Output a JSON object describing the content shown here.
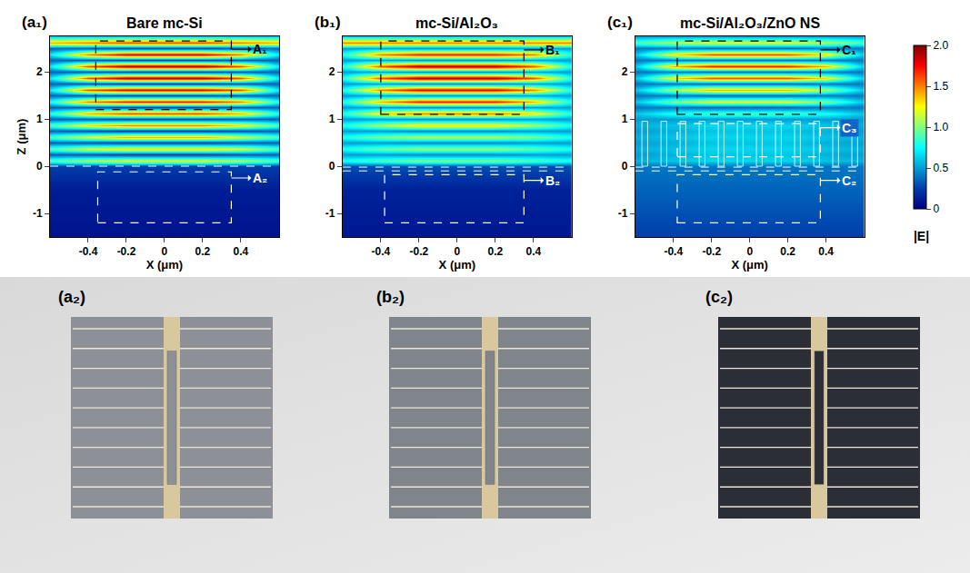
{
  "chart_data": [
    {
      "type": "heatmap",
      "panel": "(a₁)",
      "title": "Bare mc-Si",
      "xlabel": "X (μm)",
      "ylabel": "Z (μm)",
      "xlim": [
        -0.6,
        0.6
      ],
      "xticks": [
        -0.4,
        -0.2,
        0,
        0.2,
        0.4
      ],
      "ylim": [
        -1.5,
        2.75
      ],
      "yticks": [
        -1,
        0,
        1,
        2
      ],
      "x": [
        -0.6,
        -0.4,
        -0.2,
        0,
        0.2,
        0.4,
        0.6
      ],
      "y": [
        -1.5,
        -1,
        -0.5,
        0,
        0.125,
        0.25,
        0.375,
        0.5,
        0.625,
        0.75,
        0.875,
        1,
        1.125,
        1.25,
        1.375,
        1.5,
        1.625,
        1.75,
        1.875,
        2,
        2.125,
        2.25,
        2.375,
        2.5,
        2.625,
        2.75
      ],
      "z": [
        [
          0.08,
          0.08,
          0.08,
          0.08,
          0.08,
          0.08,
          0.08
        ],
        [
          0.1,
          0.1,
          0.1,
          0.1,
          0.1,
          0.1,
          0.1
        ],
        [
          0.12,
          0.12,
          0.12,
          0.12,
          0.12,
          0.12,
          0.12
        ],
        [
          0.25,
          0.25,
          0.25,
          0.25,
          0.25,
          0.25,
          0.25
        ],
        [
          0.9,
          1.1,
          1.2,
          1.2,
          1.2,
          1.1,
          0.9
        ],
        [
          0.35,
          0.3,
          0.25,
          0.25,
          0.25,
          0.3,
          0.35
        ],
        [
          0.9,
          1.2,
          1.3,
          1.3,
          1.3,
          1.2,
          0.9
        ],
        [
          0.35,
          0.3,
          0.25,
          0.25,
          0.25,
          0.3,
          0.35
        ],
        [
          0.9,
          1.2,
          1.4,
          1.4,
          1.4,
          1.2,
          0.9
        ],
        [
          0.35,
          0.3,
          0.25,
          0.25,
          0.25,
          0.3,
          0.35
        ],
        [
          0.9,
          1.3,
          1.5,
          1.5,
          1.5,
          1.3,
          0.9
        ],
        [
          0.35,
          0.3,
          0.25,
          0.25,
          0.25,
          0.3,
          0.35
        ],
        [
          0.8,
          1.4,
          1.6,
          1.6,
          1.6,
          1.4,
          0.8
        ],
        [
          0.35,
          0.3,
          0.25,
          0.25,
          0.25,
          0.3,
          0.35
        ],
        [
          0.8,
          1.5,
          1.7,
          1.7,
          1.7,
          1.5,
          0.8
        ],
        [
          0.35,
          0.3,
          0.25,
          0.25,
          0.25,
          0.3,
          0.35
        ],
        [
          0.7,
          1.6,
          1.8,
          1.8,
          1.8,
          1.6,
          0.7
        ],
        [
          0.35,
          0.3,
          0.25,
          0.25,
          0.25,
          0.3,
          0.35
        ],
        [
          0.7,
          1.6,
          1.9,
          1.9,
          1.9,
          1.6,
          0.7
        ],
        [
          0.35,
          0.3,
          0.25,
          0.25,
          0.25,
          0.3,
          0.35
        ],
        [
          0.7,
          1.6,
          1.9,
          1.9,
          1.9,
          1.6,
          0.7
        ],
        [
          0.35,
          0.3,
          0.25,
          0.25,
          0.25,
          0.3,
          0.35
        ],
        [
          0.7,
          1.5,
          1.8,
          1.8,
          1.8,
          1.5,
          0.7
        ],
        [
          0.35,
          0.3,
          0.25,
          0.25,
          0.25,
          0.3,
          0.35
        ],
        [
          1.4,
          1.5,
          1.6,
          1.6,
          1.6,
          1.5,
          1.4
        ],
        [
          0.6,
          0.6,
          0.6,
          0.6,
          0.6,
          0.6,
          0.6
        ]
      ],
      "interfaces": [
        0
      ],
      "regions": [
        {
          "label": "A₁",
          "x": [
            -0.36,
            0.35
          ],
          "y": [
            1.2,
            2.65
          ],
          "color": "#000000"
        },
        {
          "label": "A₂",
          "x": [
            -0.35,
            0.35
          ],
          "y": [
            -1.2,
            -0.12
          ],
          "color": "#ffffff"
        }
      ]
    },
    {
      "type": "heatmap",
      "panel": "(b₁)",
      "title": "mc-Si/Al₂O₃",
      "xlabel": "X (μm)",
      "xlim": [
        -0.6,
        0.6
      ],
      "xticks": [
        -0.4,
        -0.2,
        0,
        0.2,
        0.4
      ],
      "ylim": [
        -1.5,
        2.75
      ],
      "yticks": [
        -1,
        0,
        1,
        2
      ],
      "x": [
        -0.6,
        -0.4,
        -0.2,
        0,
        0.2,
        0.4,
        0.6
      ],
      "y": [
        -1.5,
        -1,
        -0.5,
        0,
        0.125,
        0.25,
        0.375,
        0.5,
        0.625,
        0.75,
        0.875,
        1,
        1.125,
        1.25,
        1.375,
        1.5,
        1.625,
        1.75,
        1.875,
        2,
        2.125,
        2.25,
        2.375,
        2.5,
        2.625,
        2.75
      ],
      "z": [
        [
          0.1,
          0.1,
          0.1,
          0.1,
          0.1,
          0.1,
          0.1
        ],
        [
          0.12,
          0.12,
          0.12,
          0.12,
          0.12,
          0.12,
          0.12
        ],
        [
          0.14,
          0.14,
          0.14,
          0.14,
          0.14,
          0.14,
          0.14
        ],
        [
          0.3,
          0.3,
          0.3,
          0.3,
          0.3,
          0.3,
          0.3
        ],
        [
          0.8,
          0.9,
          1.0,
          1.0,
          1.0,
          0.9,
          0.8
        ],
        [
          0.5,
          0.5,
          0.45,
          0.45,
          0.45,
          0.5,
          0.5
        ],
        [
          0.8,
          0.95,
          1.05,
          1.05,
          1.05,
          0.95,
          0.8
        ],
        [
          0.5,
          0.5,
          0.45,
          0.45,
          0.45,
          0.5,
          0.5
        ],
        [
          0.8,
          1.0,
          1.1,
          1.1,
          1.1,
          1.0,
          0.8
        ],
        [
          0.5,
          0.5,
          0.45,
          0.45,
          0.45,
          0.5,
          0.5
        ],
        [
          0.8,
          1.1,
          1.3,
          1.3,
          1.3,
          1.1,
          0.8
        ],
        [
          0.5,
          0.5,
          0.45,
          0.45,
          0.45,
          0.5,
          0.5
        ],
        [
          0.8,
          1.3,
          1.5,
          1.5,
          1.5,
          1.3,
          0.8
        ],
        [
          0.5,
          0.5,
          0.45,
          0.45,
          0.45,
          0.5,
          0.5
        ],
        [
          0.8,
          1.4,
          1.7,
          1.7,
          1.7,
          1.4,
          0.8
        ],
        [
          0.5,
          0.5,
          0.45,
          0.45,
          0.45,
          0.5,
          0.5
        ],
        [
          0.8,
          1.5,
          1.8,
          1.8,
          1.8,
          1.5,
          0.8
        ],
        [
          0.5,
          0.5,
          0.45,
          0.45,
          0.45,
          0.5,
          0.5
        ],
        [
          0.8,
          1.6,
          1.9,
          1.9,
          1.9,
          1.6,
          0.8
        ],
        [
          0.5,
          0.5,
          0.45,
          0.45,
          0.45,
          0.5,
          0.5
        ],
        [
          0.8,
          1.6,
          1.9,
          1.9,
          1.9,
          1.6,
          0.8
        ],
        [
          0.5,
          0.5,
          0.45,
          0.45,
          0.45,
          0.5,
          0.5
        ],
        [
          0.8,
          1.5,
          1.7,
          1.7,
          1.7,
          1.5,
          0.8
        ],
        [
          0.5,
          0.5,
          0.45,
          0.45,
          0.45,
          0.5,
          0.5
        ],
        [
          1.5,
          1.5,
          1.5,
          1.5,
          1.5,
          1.5,
          1.5
        ],
        [
          0.6,
          0.6,
          0.6,
          0.6,
          0.6,
          0.6,
          0.6
        ]
      ],
      "interfaces": [
        -0.02,
        -0.1
      ],
      "regions": [
        {
          "label": "B₁",
          "x": [
            -0.4,
            0.35
          ],
          "y": [
            1.1,
            2.65
          ],
          "color": "#000000"
        },
        {
          "label": "B₂",
          "x": [
            -0.38,
            0.35
          ],
          "y": [
            -1.2,
            -0.18
          ],
          "color": "#ffffff"
        }
      ]
    },
    {
      "type": "heatmap",
      "panel": "(c₁)",
      "title": "mc-Si/Al₂O₃/ZnO NS",
      "xlabel": "X (μm)",
      "xlim": [
        -0.6,
        0.6
      ],
      "xticks": [
        -0.4,
        -0.2,
        0,
        0.2,
        0.4
      ],
      "ylim": [
        -1.5,
        2.75
      ],
      "yticks": [
        -1,
        0,
        1,
        2
      ],
      "x": [
        -0.6,
        -0.4,
        -0.2,
        0,
        0.2,
        0.4,
        0.6
      ],
      "y": [
        -1.5,
        -1,
        -0.5,
        0,
        0.125,
        0.25,
        0.375,
        0.5,
        0.625,
        0.75,
        0.875,
        1,
        1.125,
        1.25,
        1.375,
        1.5,
        1.625,
        1.75,
        1.875,
        2,
        2.125,
        2.25,
        2.375,
        2.5,
        2.625,
        2.75
      ],
      "z": [
        [
          0.25,
          0.25,
          0.25,
          0.25,
          0.25,
          0.25,
          0.25
        ],
        [
          0.3,
          0.3,
          0.3,
          0.3,
          0.3,
          0.3,
          0.3
        ],
        [
          0.35,
          0.35,
          0.35,
          0.35,
          0.35,
          0.35,
          0.35
        ],
        [
          0.4,
          0.4,
          0.4,
          0.4,
          0.4,
          0.4,
          0.4
        ],
        [
          0.55,
          0.6,
          0.65,
          0.65,
          0.65,
          0.6,
          0.55
        ],
        [
          0.5,
          0.55,
          0.6,
          0.6,
          0.6,
          0.55,
          0.5
        ],
        [
          0.55,
          0.6,
          0.65,
          0.65,
          0.65,
          0.6,
          0.55
        ],
        [
          0.5,
          0.55,
          0.6,
          0.6,
          0.6,
          0.55,
          0.5
        ],
        [
          0.55,
          0.6,
          0.65,
          0.65,
          0.65,
          0.6,
          0.55
        ],
        [
          0.5,
          0.55,
          0.6,
          0.6,
          0.6,
          0.55,
          0.5
        ],
        [
          0.55,
          0.6,
          0.65,
          0.65,
          0.65,
          0.6,
          0.55
        ],
        [
          0.5,
          0.5,
          0.5,
          0.5,
          0.5,
          0.5,
          0.5
        ],
        [
          0.6,
          0.8,
          0.9,
          0.9,
          0.9,
          0.8,
          0.6
        ],
        [
          0.4,
          0.4,
          0.35,
          0.35,
          0.35,
          0.4,
          0.4
        ],
        [
          0.6,
          1.0,
          1.2,
          1.2,
          1.2,
          1.0,
          0.6
        ],
        [
          0.4,
          0.4,
          0.35,
          0.35,
          0.35,
          0.4,
          0.4
        ],
        [
          0.6,
          1.1,
          1.4,
          1.4,
          1.4,
          1.1,
          0.6
        ],
        [
          0.4,
          0.4,
          0.35,
          0.35,
          0.35,
          0.4,
          0.4
        ],
        [
          0.6,
          1.3,
          1.6,
          1.6,
          1.6,
          1.3,
          0.6
        ],
        [
          0.4,
          0.4,
          0.35,
          0.35,
          0.35,
          0.4,
          0.4
        ],
        [
          0.6,
          1.4,
          1.7,
          1.7,
          1.7,
          1.4,
          0.6
        ],
        [
          0.4,
          0.4,
          0.35,
          0.35,
          0.35,
          0.4,
          0.4
        ],
        [
          0.6,
          1.3,
          1.6,
          1.6,
          1.6,
          1.3,
          0.6
        ],
        [
          0.4,
          0.4,
          0.35,
          0.35,
          0.35,
          0.4,
          0.4
        ],
        [
          0.9,
          1.1,
          1.2,
          1.2,
          1.2,
          1.1,
          0.9
        ],
        [
          0.5,
          0.5,
          0.5,
          0.5,
          0.5,
          0.5,
          0.5
        ]
      ],
      "interfaces": [
        -0.02,
        -0.1
      ],
      "nanorods": {
        "x": [
          -0.55,
          -0.45,
          -0.35,
          -0.25,
          -0.15,
          -0.05,
          0.05,
          0.15,
          0.25,
          0.35,
          0.45,
          0.55
        ],
        "y": [
          0,
          0.95
        ]
      },
      "regions": [
        {
          "label": "C₁",
          "x": [
            -0.38,
            0.37
          ],
          "y": [
            1.1,
            2.65
          ],
          "color": "#000000"
        },
        {
          "label": "C₃",
          "x": [
            -0.38,
            0.37
          ],
          "y": [
            0.2,
            0.9
          ],
          "color": "#ffffff"
        },
        {
          "label": "C₂",
          "x": [
            -0.38,
            0.37
          ],
          "y": [
            -1.2,
            -0.18
          ],
          "color": "#ffffff"
        }
      ]
    }
  ],
  "colorbar": {
    "title": "|E|",
    "zlim": [
      0,
      2
    ],
    "ticks": [
      0,
      0.5,
      {
        "value": 1,
        "label": "1.0"
      },
      1.5,
      {
        "value": 2,
        "label": "2.0"
      }
    ]
  },
  "photos": [
    {
      "label": "(a₂)",
      "color": "#8d9197"
    },
    {
      "label": "(b₂)",
      "color": "#80858c"
    },
    {
      "label": "(c₂)",
      "color": "#2b2e37"
    }
  ]
}
